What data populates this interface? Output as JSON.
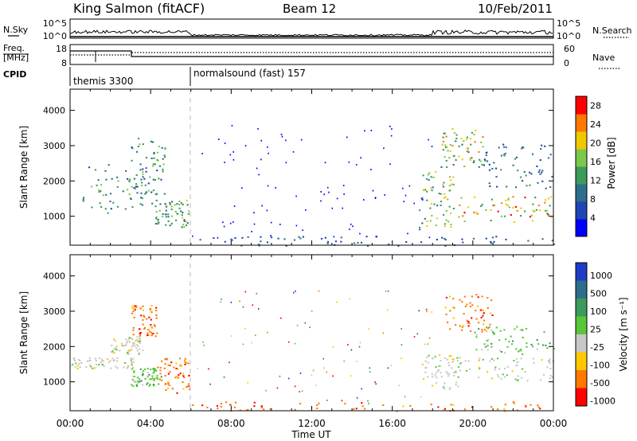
{
  "header": {
    "station": "King Salmon (fitACF)",
    "beam": "Beam 12",
    "date": "10/Feb/2011"
  },
  "top_panels": {
    "nsky_label": "N.Sky",
    "nsearch_label": "N.Search",
    "freq_label_1": "Freq.",
    "freq_label_2": "[MHz]",
    "nave_label": "Nave",
    "cpid_label": "CPID",
    "nsky_ticks": [
      "10^5",
      "10^0"
    ],
    "nsearch_ticks": [
      "10^5",
      "10^0"
    ],
    "freq_ticks": [
      "18",
      "8"
    ],
    "nave_ticks": [
      "60",
      "0"
    ],
    "cpid_segments": [
      {
        "start_hour": 0,
        "label": "themis 3300"
      },
      {
        "start_hour": 6.0,
        "label": "normalsound (fast) 157"
      }
    ]
  },
  "chart_data": [
    {
      "type": "heatmap",
      "name": "power",
      "ylabel": "Slant Range [km]",
      "ylim": [
        180,
        4600
      ],
      "yticks": [
        "4000",
        "3000",
        "2000",
        "1000"
      ],
      "yticks_values": [
        4000,
        3000,
        2000,
        1000
      ],
      "xlim": [
        0,
        24
      ],
      "colorbar": {
        "label": "Power [dB]",
        "ticks": [
          "28",
          "24",
          "20",
          "16",
          "12",
          "8",
          "4"
        ],
        "tick_values": [
          28,
          24,
          20,
          16,
          12,
          8,
          4
        ],
        "range": [
          0,
          30
        ],
        "colors": [
          "#0000ff",
          "#1e46b4",
          "#2e6e8c",
          "#3c9a5a",
          "#7cc84a",
          "#f0c800",
          "#ff7800",
          "#ff0000"
        ]
      },
      "scatter_regions": [
        {
          "t": [
            0.6,
            4.2
          ],
          "r": [
            1100,
            2500
          ],
          "v": [
            6,
            16
          ]
        },
        {
          "t": [
            2.8,
            4.7
          ],
          "r": [
            1600,
            3300
          ],
          "v": [
            6,
            18
          ]
        },
        {
          "t": [
            4.2,
            5.9
          ],
          "r": [
            700,
            1500
          ],
          "v": [
            8,
            20
          ]
        },
        {
          "t": [
            17.3,
            19.0
          ],
          "r": [
            700,
            2300
          ],
          "v": [
            8,
            22
          ]
        },
        {
          "t": [
            18.4,
            20.6
          ],
          "r": [
            2400,
            3500
          ],
          "v": [
            10,
            24
          ]
        },
        {
          "t": [
            19.0,
            24.0
          ],
          "r": [
            850,
            1600
          ],
          "v": [
            12,
            28
          ]
        },
        {
          "t": [
            20.5,
            24.0
          ],
          "r": [
            1800,
            3100
          ],
          "v": [
            6,
            12
          ]
        },
        {
          "t": [
            6.0,
            24.0
          ],
          "r": [
            180,
            450
          ],
          "v": [
            4,
            10
          ]
        }
      ]
    },
    {
      "type": "heatmap",
      "name": "velocity",
      "ylabel": "Slant Range [km]",
      "ylim": [
        180,
        4600
      ],
      "yticks": [
        "4000",
        "3000",
        "2000",
        "1000"
      ],
      "yticks_values": [
        4000,
        3000,
        2000,
        1000
      ],
      "xlim": [
        0,
        24
      ],
      "xticks": [
        "00:00",
        "04:00",
        "08:00",
        "12:00",
        "16:00",
        "20:00",
        "00:00"
      ],
      "xtick_values": [
        0,
        4,
        8,
        12,
        16,
        20,
        24
      ],
      "xlabel": "Time UT",
      "colorbar": {
        "label": "Velocity [m s⁻¹]",
        "ticks": [
          "1000",
          "500",
          "100",
          "25",
          "-25",
          "-100",
          "-500",
          "-1000"
        ],
        "colors": [
          "#1e3cc8",
          "#2e6e8c",
          "#3c9a5a",
          "#58c838",
          "#c8c8c8",
          "#ffc800",
          "#ff7800",
          "#ff0000"
        ]
      },
      "scatter_regions": [
        {
          "t": [
            0.0,
            3.2
          ],
          "r": [
            1400,
            1700
          ],
          "v": "gray"
        },
        {
          "t": [
            2.0,
            3.6
          ],
          "r": [
            1800,
            2300
          ],
          "v": "gray"
        },
        {
          "t": [
            3.0,
            4.5
          ],
          "r": [
            900,
            1400
          ],
          "v": "green"
        },
        {
          "t": [
            3.0,
            4.3
          ],
          "r": [
            2300,
            3200
          ],
          "v": "orange"
        },
        {
          "t": [
            4.3,
            5.9
          ],
          "r": [
            700,
            1700
          ],
          "v": "orange"
        },
        {
          "t": [
            17.4,
            19.4
          ],
          "r": [
            800,
            1800
          ],
          "v": "gray"
        },
        {
          "t": [
            19.0,
            24.0
          ],
          "r": [
            1050,
            1700
          ],
          "v": "gray"
        },
        {
          "t": [
            18.6,
            21.0
          ],
          "r": [
            2400,
            3500
          ],
          "v": "orange"
        },
        {
          "t": [
            20.0,
            24.0
          ],
          "r": [
            1800,
            2600
          ],
          "v": "green"
        },
        {
          "t": [
            6.0,
            24.0
          ],
          "r": [
            180,
            450
          ],
          "v": "orange"
        }
      ]
    }
  ]
}
